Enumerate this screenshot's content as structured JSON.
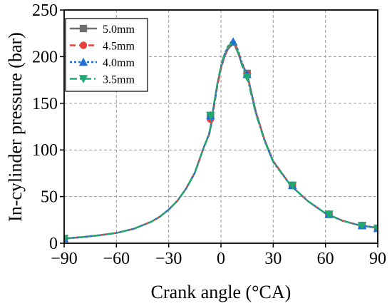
{
  "chart_data": {
    "type": "line",
    "xlabel": "Crank angle (°CA)",
    "ylabel": "In-cylinder pressure (bar)",
    "xlim": [
      -90,
      90
    ],
    "ylim": [
      0,
      250
    ],
    "xticks": [
      -90,
      -60,
      -30,
      0,
      30,
      60,
      90
    ],
    "yticks": [
      0,
      50,
      100,
      150,
      200,
      250
    ],
    "grid": true,
    "legend_position": "top-left",
    "series": [
      {
        "name": "5.0mm",
        "color": "#6f6f6f",
        "dash": "solid",
        "marker": "square",
        "x": [
          -90,
          -80,
          -70,
          -60,
          -50,
          -40,
          -35,
          -30,
          -25,
          -20,
          -15,
          -10,
          -7,
          -6,
          -5,
          -4,
          -2,
          0,
          2,
          4,
          6,
          7,
          8,
          10,
          12,
          15,
          20,
          25,
          30,
          40,
          50,
          60,
          70,
          80,
          90
        ],
        "y": [
          5,
          6.5,
          8.5,
          11,
          15.5,
          23,
          28.5,
          36,
          45.5,
          58.5,
          75.5,
          102,
          116,
          124,
          137,
          149,
          171,
          188,
          200,
          208,
          212,
          213,
          212,
          203,
          192,
          182,
          141,
          111,
          88,
          62,
          45,
          32,
          24,
          19,
          16.5
        ],
        "marker_x": [
          -90,
          -6,
          15,
          41,
          62,
          81,
          90
        ],
        "marker_y": [
          5,
          136,
          182,
          62,
          31,
          19,
          16
        ]
      },
      {
        "name": "4.5mm",
        "color": "#e8413c",
        "dash": "dash",
        "marker": "circle",
        "x": [
          -90,
          -80,
          -70,
          -60,
          -50,
          -40,
          -35,
          -30,
          -25,
          -20,
          -15,
          -10,
          -7,
          -6,
          -5,
          -4,
          -2,
          0,
          2,
          4,
          6,
          7,
          8,
          10,
          12,
          15,
          20,
          25,
          30,
          40,
          50,
          60,
          70,
          80,
          90
        ],
        "y": [
          5,
          6.5,
          8.5,
          11,
          15.5,
          23,
          28.5,
          36,
          45.5,
          58.5,
          75.5,
          102,
          115,
          122,
          133,
          146,
          169,
          187,
          200,
          209,
          214,
          215,
          214,
          205,
          193,
          181,
          141,
          111,
          88,
          62,
          45,
          32,
          24,
          19,
          16.5
        ],
        "marker_x": [
          -90,
          -6,
          15,
          41,
          62,
          81,
          90
        ],
        "marker_y": [
          5,
          133,
          181,
          62,
          31,
          19,
          16
        ]
      },
      {
        "name": "4.0mm",
        "color": "#1f6fd6",
        "dash": "dot",
        "marker": "triangle-up",
        "x": [
          -90,
          -80,
          -70,
          -60,
          -50,
          -40,
          -35,
          -30,
          -25,
          -20,
          -15,
          -10,
          -7,
          -6,
          -5,
          -4,
          -2,
          0,
          2,
          4,
          6,
          7,
          8,
          10,
          12,
          15,
          20,
          25,
          30,
          40,
          50,
          60,
          70,
          80,
          90
        ],
        "y": [
          5,
          6.5,
          8.5,
          11,
          15.5,
          23,
          28.5,
          36,
          45.5,
          58.5,
          75.5,
          102,
          116,
          123,
          136,
          148,
          171,
          189,
          202,
          211,
          216,
          217,
          216,
          206,
          194,
          180,
          140,
          110,
          87,
          62,
          45,
          32,
          24,
          19,
          16.5
        ],
        "marker_x": [
          -90,
          -6,
          7,
          15,
          41,
          62,
          81,
          90
        ],
        "marker_y": [
          5,
          137,
          216,
          181,
          62,
          31,
          19,
          16
        ]
      },
      {
        "name": "3.5mm",
        "color": "#1fa86f",
        "dash": "dashdot",
        "marker": "triangle-down",
        "x": [
          -90,
          -80,
          -70,
          -60,
          -50,
          -40,
          -35,
          -30,
          -25,
          -20,
          -15,
          -10,
          -7,
          -6,
          -5,
          -4,
          -2,
          0,
          2,
          4,
          6,
          7,
          8,
          10,
          12,
          15,
          20,
          25,
          30,
          40,
          50,
          60,
          70,
          80,
          90
        ],
        "y": [
          5,
          6.5,
          8.5,
          11,
          15.5,
          23,
          28.5,
          36,
          45.5,
          58.5,
          75.5,
          102,
          116,
          124,
          137,
          149,
          172,
          190,
          203,
          211,
          214,
          214,
          213,
          204,
          191,
          178,
          139,
          110,
          87,
          62,
          45,
          32,
          24,
          19,
          16.5
        ],
        "marker_x": [
          -90,
          -6,
          15,
          41,
          62,
          81,
          90
        ],
        "marker_y": [
          5,
          137,
          178,
          62,
          31,
          19,
          16
        ]
      }
    ]
  }
}
